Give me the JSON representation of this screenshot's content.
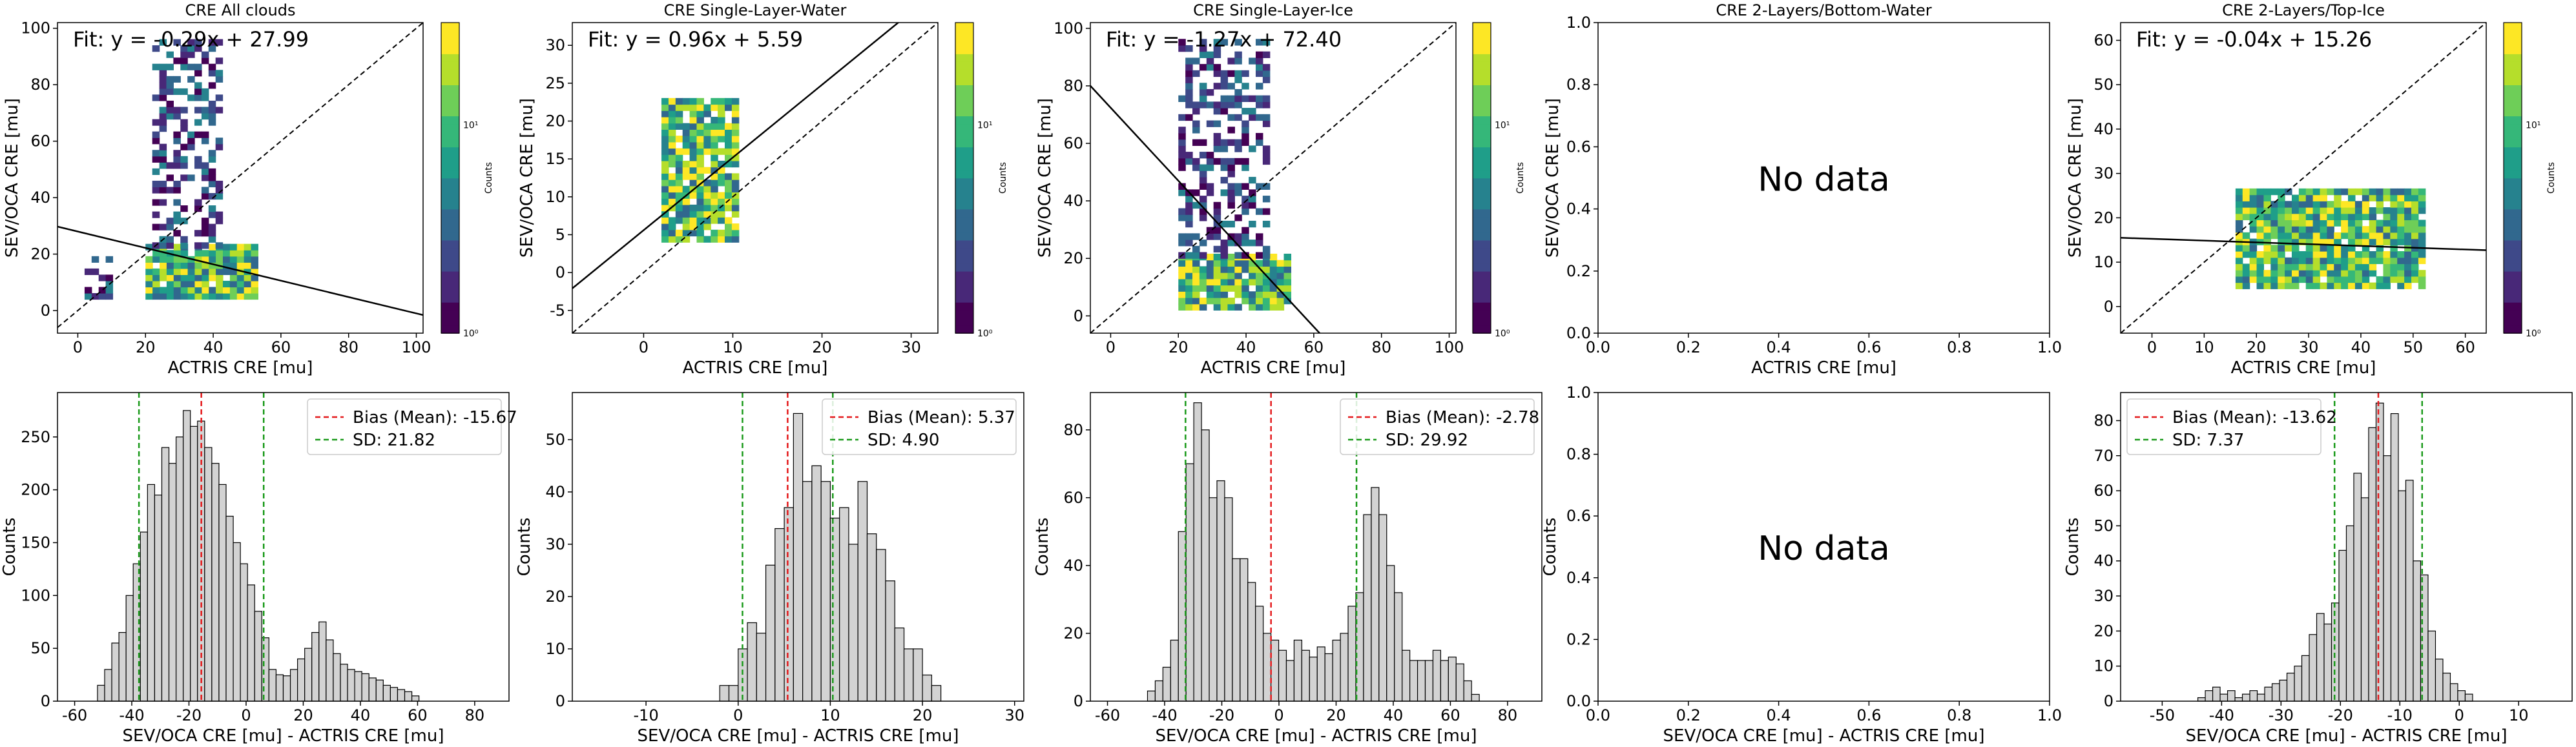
{
  "figure": {
    "xlabel_top": "ACTRIS CRE [mu]",
    "ylabel_top": "SEV/OCA CRE [mu]",
    "xlabel_bottom": "SEV/OCA CRE [mu] - ACTRIS CRE [mu]",
    "ylabel_bottom": "Counts",
    "colorbar_label": "Counts",
    "no_data_text": "No data"
  },
  "chart_data": [
    {
      "type": "heatmap",
      "title": "CRE All clouds",
      "fit_label": "Fit: y = -0.29x + 27.99",
      "fit": {
        "slope": -0.29,
        "intercept": 27.99
      },
      "xlim": [
        -6,
        102
      ],
      "ylim": [
        -8,
        102
      ],
      "xticks": [
        0,
        20,
        40,
        60,
        80,
        100
      ],
      "yticks": [
        0,
        20,
        40,
        60,
        80,
        100
      ],
      "colorbar": {
        "scale": "log",
        "ticks": [
          "10⁰",
          "10¹"
        ]
      },
      "clusters": [
        {
          "x": [
            20,
            52
          ],
          "y": [
            4,
            22
          ],
          "density": "high"
        },
        {
          "x": [
            22,
            42
          ],
          "y": [
            22,
            95
          ],
          "density": "medium"
        },
        {
          "x": [
            2,
            10
          ],
          "y": [
            4,
            18
          ],
          "density": "medium"
        }
      ]
    },
    {
      "type": "heatmap",
      "title": "CRE Single-Layer-Water",
      "fit_label": "Fit: y = 0.96x + 5.59",
      "fit": {
        "slope": 0.96,
        "intercept": 5.59
      },
      "xlim": [
        -8,
        33
      ],
      "ylim": [
        -8,
        33
      ],
      "xticks": [
        0,
        10,
        20,
        30
      ],
      "yticks": [
        -5,
        0,
        5,
        10,
        15,
        20,
        25,
        30
      ],
      "colorbar": {
        "scale": "log",
        "ticks": [
          "10⁰",
          "10¹"
        ]
      },
      "clusters": [
        {
          "x": [
            2,
            10
          ],
          "y": [
            4,
            23
          ],
          "density": "high"
        }
      ]
    },
    {
      "type": "heatmap",
      "title": "CRE Single-Layer-Ice",
      "fit_label": "Fit: y = -1.27x + 72.40",
      "fit": {
        "slope": -1.27,
        "intercept": 72.4
      },
      "xlim": [
        -6,
        102
      ],
      "ylim": [
        -6,
        102
      ],
      "xticks": [
        0,
        20,
        40,
        60,
        80,
        100
      ],
      "yticks": [
        0,
        20,
        40,
        60,
        80,
        100
      ],
      "colorbar": {
        "scale": "log",
        "ticks": [
          "10⁰",
          "10¹"
        ]
      },
      "clusters": [
        {
          "x": [
            20,
            52
          ],
          "y": [
            2,
            20
          ],
          "density": "high"
        },
        {
          "x": [
            20,
            46
          ],
          "y": [
            20,
            95
          ],
          "density": "medium"
        }
      ]
    },
    {
      "type": "heatmap",
      "title": "CRE 2-Layers/Bottom-Water",
      "fit_label": "",
      "no_data": true,
      "xlim": [
        0,
        1
      ],
      "ylim": [
        0,
        1
      ],
      "xticks": [
        "0.0",
        "0.2",
        "0.4",
        "0.6",
        "0.8",
        "1.0"
      ],
      "yticks": [
        "0.0",
        "0.2",
        "0.4",
        "0.6",
        "0.8",
        "1.0"
      ]
    },
    {
      "type": "heatmap",
      "title": "CRE 2-Layers/Top-Ice",
      "fit_label": "Fit: y = -0.04x + 15.26",
      "fit": {
        "slope": -0.04,
        "intercept": 15.26
      },
      "xlim": [
        -6,
        64
      ],
      "ylim": [
        -6,
        64
      ],
      "xticks": [
        0,
        10,
        20,
        30,
        40,
        50,
        60
      ],
      "yticks": [
        0,
        10,
        20,
        30,
        40,
        50,
        60
      ],
      "colorbar": {
        "scale": "log",
        "ticks": [
          "10⁰",
          "10¹"
        ]
      },
      "clusters": [
        {
          "x": [
            16,
            52
          ],
          "y": [
            4,
            26
          ],
          "density": "high"
        }
      ]
    },
    {
      "type": "bar",
      "subtype": "histogram",
      "bins": {
        "start": -52,
        "width": 2.5
      },
      "values": [
        15,
        30,
        55,
        65,
        100,
        130,
        160,
        205,
        195,
        240,
        225,
        250,
        275,
        260,
        265,
        240,
        225,
        205,
        175,
        150,
        130,
        110,
        85,
        60,
        30,
        25,
        24,
        30,
        40,
        50,
        65,
        75,
        58,
        45,
        35,
        30,
        28,
        26,
        22,
        20,
        15,
        13,
        11,
        9,
        5
      ],
      "xlim": [
        -66,
        92
      ],
      "ylim": [
        0,
        292
      ],
      "xticks": [
        -60,
        -40,
        -20,
        0,
        20,
        40,
        60,
        80
      ],
      "yticks": [
        0,
        50,
        100,
        150,
        200,
        250
      ],
      "mean": -15.67,
      "sd_lines": [
        -37.49,
        6.15
      ],
      "legend": [
        "Bias (Mean): -15.67",
        "SD: 21.82"
      ]
    },
    {
      "type": "bar",
      "subtype": "histogram",
      "bins": {
        "start": -2,
        "width": 1
      },
      "values": [
        3,
        3,
        10,
        15,
        13,
        26,
        33,
        37,
        55,
        42,
        45,
        42,
        35,
        37,
        30,
        42,
        32,
        29,
        23,
        14,
        10,
        10,
        5,
        3
      ],
      "xlim": [
        -18,
        31
      ],
      "ylim": [
        0,
        59
      ],
      "xticks": [
        -10,
        0,
        10,
        20,
        30
      ],
      "yticks": [
        0,
        10,
        20,
        30,
        40,
        50
      ],
      "mean": 5.37,
      "sd_lines": [
        0.47,
        10.27
      ],
      "legend": [
        "Bias (Mean): 5.37",
        "SD: 4.90"
      ]
    },
    {
      "type": "bar",
      "subtype": "histogram",
      "bins": {
        "start": -46,
        "width": 2.7
      },
      "values": [
        3,
        6,
        10,
        18,
        50,
        70,
        88,
        80,
        60,
        65,
        60,
        42,
        42,
        35,
        28,
        20,
        18,
        15,
        12,
        18,
        15,
        13,
        16,
        14,
        18,
        20,
        28,
        32,
        55,
        63,
        55,
        40,
        32,
        15,
        12,
        12,
        12,
        15,
        12,
        13,
        11,
        6,
        2
      ],
      "xlim": [
        -66,
        92
      ],
      "ylim": [
        0,
        91
      ],
      "xticks": [
        -60,
        -40,
        -20,
        0,
        20,
        40,
        60,
        80
      ],
      "yticks": [
        0,
        20,
        40,
        60,
        80
      ],
      "mean": -2.78,
      "sd_lines": [
        -32.7,
        27.14
      ],
      "legend": [
        "Bias (Mean): -2.78",
        "SD: 29.92"
      ]
    },
    {
      "type": "bar",
      "subtype": "histogram",
      "no_data": true,
      "xlim": [
        0,
        1
      ],
      "ylim": [
        0,
        1
      ],
      "xticks": [
        "0.0",
        "0.2",
        "0.4",
        "0.6",
        "0.8",
        "1.0"
      ],
      "yticks": [
        "0.0",
        "0.2",
        "0.4",
        "0.6",
        "0.8",
        "1.0"
      ]
    },
    {
      "type": "bar",
      "subtype": "histogram",
      "bins": {
        "start": -44,
        "width": 1.25
      },
      "values": [
        1,
        3,
        4,
        2,
        3,
        1,
        2,
        3,
        2,
        4,
        5,
        6,
        8,
        10,
        13,
        19,
        25,
        22,
        28,
        43,
        50,
        65,
        58,
        78,
        85,
        70,
        82,
        60,
        63,
        40,
        36,
        20,
        12,
        8,
        5,
        3,
        2
      ],
      "xlim": [
        -57,
        19
      ],
      "ylim": [
        0,
        88
      ],
      "xticks": [
        -50,
        -40,
        -30,
        -20,
        -10,
        0,
        10
      ],
      "yticks": [
        0,
        10,
        20,
        30,
        40,
        50,
        60,
        70,
        80
      ],
      "mean": -13.62,
      "sd_lines": [
        -20.99,
        -6.25
      ],
      "legend": [
        "Bias (Mean): -13.62",
        "SD: 7.37"
      ]
    }
  ]
}
